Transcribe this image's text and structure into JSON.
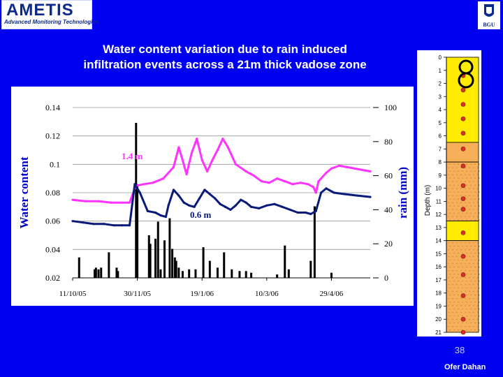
{
  "header": {
    "logo_title": "AMETIS",
    "logo_subtitle": "Advanced Monitoring Technologies",
    "university_logo": "BGU"
  },
  "slide": {
    "title_line1": "Water content variation due to rain induced",
    "title_line2": "infiltration events across a 21m thick vadose zone",
    "page_number": "38",
    "author": "Ofer Dahan"
  },
  "colors": {
    "background": "#0000f0",
    "series_14m": "#ff33ff",
    "series_06m": "#0a1a7a",
    "rain": "#000000",
    "sediment_yellow": "#ffec00",
    "sediment_orange": "#f7b05a",
    "sensor_dot": "#d8322a"
  },
  "chart_data": {
    "type": "line",
    "xlabel": "",
    "ylabel": "Water content",
    "y2label": "rain (mm)",
    "ylim": [
      0.02,
      0.14
    ],
    "y2lim": [
      0,
      100
    ],
    "yticks": [
      "0.14",
      "0.12",
      "0.1",
      "0.08",
      "0.06",
      "0.04",
      "0.02"
    ],
    "y2ticks": [
      "100",
      "80",
      "60",
      "40",
      "20",
      "0"
    ],
    "xticks": [
      "11/10/05",
      "30/11/05",
      "19/1/06",
      "10/3/06",
      "29/4/06"
    ],
    "xlim_days": [
      0,
      230
    ],
    "grid": true,
    "series": [
      {
        "name": "1.4 m",
        "color": "#ff33ff",
        "x": [
          0,
          10,
          20,
          30,
          38,
          44,
          48,
          50,
          55,
          62,
          70,
          78,
          82,
          85,
          88,
          92,
          96,
          100,
          104,
          108,
          112,
          116,
          120,
          126,
          134,
          140,
          146,
          152,
          158,
          164,
          170,
          176,
          182,
          186,
          188,
          190,
          196,
          200,
          206,
          212,
          218,
          224,
          230
        ],
        "y": [
          0.075,
          0.074,
          0.074,
          0.073,
          0.073,
          0.073,
          0.083,
          0.085,
          0.086,
          0.087,
          0.09,
          0.098,
          0.112,
          0.103,
          0.093,
          0.108,
          0.118,
          0.103,
          0.095,
          0.103,
          0.11,
          0.118,
          0.112,
          0.1,
          0.095,
          0.092,
          0.088,
          0.087,
          0.09,
          0.088,
          0.086,
          0.087,
          0.086,
          0.084,
          0.08,
          0.088,
          0.094,
          0.097,
          0.099,
          0.098,
          0.097,
          0.096,
          0.095
        ]
      },
      {
        "name": "0.6 m",
        "color": "#0a1a7a",
        "x": [
          0,
          8,
          16,
          24,
          32,
          38,
          44,
          48,
          52,
          58,
          64,
          68,
          72,
          74,
          78,
          82,
          86,
          90,
          94,
          98,
          102,
          106,
          110,
          114,
          118,
          122,
          126,
          130,
          134,
          138,
          144,
          150,
          156,
          162,
          168,
          174,
          180,
          184,
          188,
          192,
          196,
          202,
          210,
          220,
          230
        ],
        "y": [
          0.06,
          0.059,
          0.058,
          0.058,
          0.057,
          0.057,
          0.057,
          0.086,
          0.08,
          0.067,
          0.066,
          0.064,
          0.063,
          0.071,
          0.082,
          0.078,
          0.073,
          0.071,
          0.07,
          0.076,
          0.082,
          0.079,
          0.076,
          0.072,
          0.07,
          0.068,
          0.071,
          0.075,
          0.073,
          0.07,
          0.069,
          0.071,
          0.072,
          0.07,
          0.068,
          0.066,
          0.066,
          0.065,
          0.067,
          0.08,
          0.083,
          0.08,
          0.079,
          0.078,
          0.077
        ]
      }
    ],
    "rain": {
      "name": "rain (mm)",
      "x": [
        5,
        17,
        18,
        20,
        22,
        28,
        34,
        35,
        49,
        50,
        59,
        60,
        64,
        66,
        68,
        71,
        75,
        77,
        79,
        80,
        82,
        85,
        90,
        95,
        101,
        106,
        112,
        117,
        123,
        129,
        134,
        138,
        158,
        164,
        167,
        184,
        187,
        200
      ],
      "values": [
        12,
        5,
        6,
        5,
        6,
        15,
        6,
        4,
        91,
        55,
        25,
        20,
        23,
        33,
        5,
        22,
        35,
        17,
        12,
        10,
        6,
        4,
        5,
        5,
        18,
        10,
        6,
        15,
        5,
        4,
        4,
        3,
        2,
        19,
        5,
        10,
        42,
        3
      ]
    },
    "annotations": [
      "1.4 m",
      "0.6 m"
    ]
  },
  "profile": {
    "axis_label": "Depth (m)",
    "depth_ticks": [
      "0",
      "1",
      "2",
      "3",
      "4",
      "5",
      "6",
      "7",
      "8",
      "9",
      "10",
      "11",
      "12",
      "13",
      "14",
      "15",
      "16",
      "17",
      "18",
      "19",
      "20",
      "21"
    ],
    "sensor_depths": [
      1.4,
      2.5,
      3.6,
      4.7,
      5.8,
      7.0,
      8.3,
      9.8,
      10.8,
      11.6,
      13.4,
      15.2,
      16.6,
      18.2,
      20.0,
      21.0
    ],
    "layers": [
      {
        "from": 0,
        "to": 6.5,
        "fill": "yellow"
      },
      {
        "from": 6.5,
        "to": 8.0,
        "fill": "orange"
      },
      {
        "from": 8.0,
        "to": 12.5,
        "fill": "orange-dotted"
      },
      {
        "from": 12.5,
        "to": 14.0,
        "fill": "yellow"
      },
      {
        "from": 14.0,
        "to": 21.0,
        "fill": "orange-dotted"
      }
    ]
  }
}
